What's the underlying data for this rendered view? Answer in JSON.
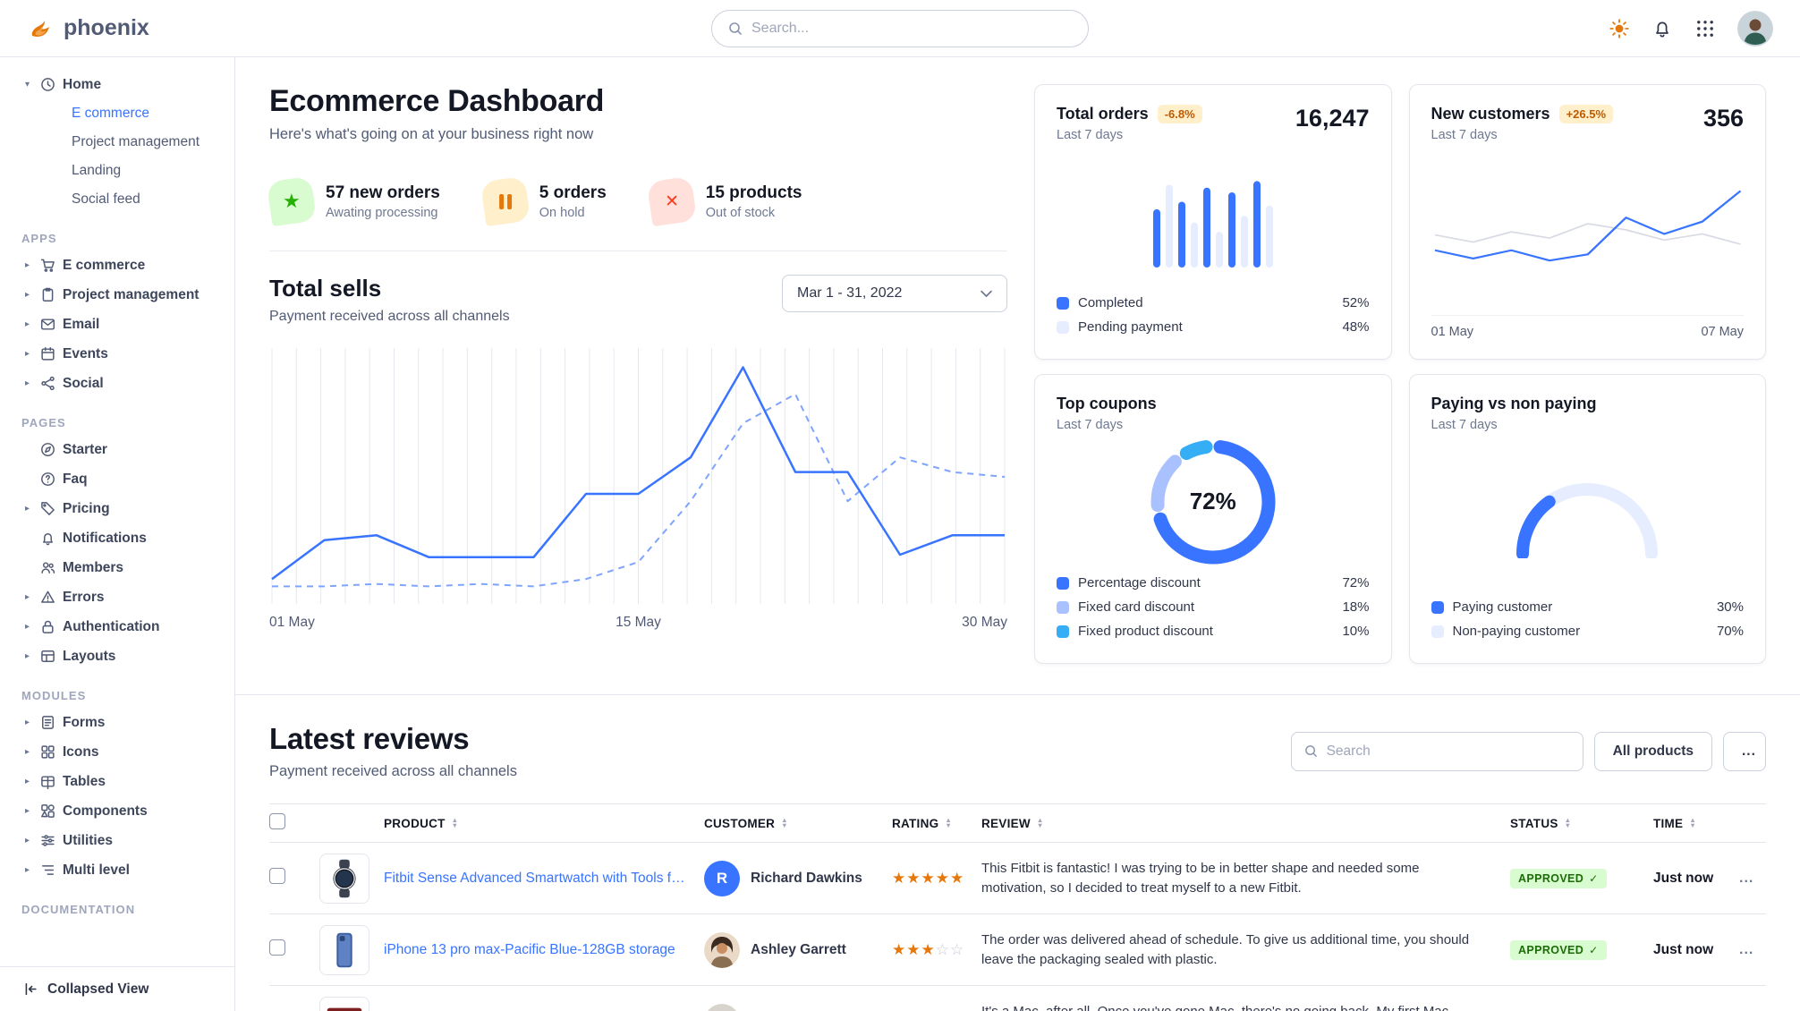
{
  "colors": {
    "primary": "#3874ff",
    "primary_light": "#e5edff",
    "primary_soft": "#7fa4ff",
    "periwinkle": "#a9c2ff",
    "info": "#35aef5",
    "warning": "#e5780b",
    "success": "#25b003",
    "danger": "#fa3b1d",
    "gridline": "#e5e8ef",
    "gray_line": "#d8dbe3"
  },
  "nav": {
    "brand": "phoenix",
    "search_placeholder": "Search..."
  },
  "sidebar": {
    "home": {
      "label": "Home",
      "children": [
        {
          "label": "E commerce"
        },
        {
          "label": "Project management"
        },
        {
          "label": "Landing"
        },
        {
          "label": "Social feed"
        }
      ]
    },
    "sections": [
      {
        "title": "APPS",
        "items": [
          {
            "label": "E commerce",
            "icon": "cart-icon"
          },
          {
            "label": "Project management",
            "icon": "clipboard-icon"
          },
          {
            "label": "Email",
            "icon": "mail-icon"
          },
          {
            "label": "Events",
            "icon": "calendar-icon"
          },
          {
            "label": "Social",
            "icon": "share-icon"
          }
        ]
      },
      {
        "title": "PAGES",
        "items": [
          {
            "label": "Starter",
            "icon": "compass-icon"
          },
          {
            "label": "Faq",
            "icon": "question-icon"
          },
          {
            "label": "Pricing",
            "icon": "tag-icon"
          },
          {
            "label": "Notifications",
            "icon": "bell-icon"
          },
          {
            "label": "Members",
            "icon": "users-icon"
          },
          {
            "label": "Errors",
            "icon": "warning-icon"
          },
          {
            "label": "Authentication",
            "icon": "lock-icon"
          },
          {
            "label": "Layouts",
            "icon": "layout-icon"
          }
        ]
      },
      {
        "title": "MODULES",
        "items": [
          {
            "label": "Forms",
            "icon": "form-icon"
          },
          {
            "label": "Icons",
            "icon": "grid-icon"
          },
          {
            "label": "Tables",
            "icon": "table-icon"
          },
          {
            "label": "Components",
            "icon": "components-icon"
          },
          {
            "label": "Utilities",
            "icon": "sliders-icon"
          },
          {
            "label": "Multi level",
            "icon": "list-icon"
          }
        ]
      },
      {
        "title": "DOCUMENTATION",
        "items": []
      }
    ],
    "collapse_label": "Collapsed View"
  },
  "header": {
    "title": "Ecommerce Dashboard",
    "subtitle": "Here's what's going on at your business right now"
  },
  "stats": [
    {
      "value": "57 new orders",
      "caption": "Awating processing",
      "icon": "star-icon"
    },
    {
      "value": "5 orders",
      "caption": "On hold",
      "icon": "pause-icon"
    },
    {
      "value": "15 products",
      "caption": "Out of stock",
      "icon": "x-icon"
    }
  ],
  "total_sells": {
    "title": "Total sells",
    "subtitle": "Payment received across all channels",
    "date_range": "Mar 1 - 31, 2022"
  },
  "charts": {
    "total_sells": {
      "type": "line",
      "x_labels": [
        "01 May",
        "15 May",
        "30 May"
      ],
      "y_range": [
        0,
        100
      ],
      "gridlines": 31,
      "series": [
        {
          "name": "current",
          "values": [
            8,
            24,
            26,
            17,
            17,
            17,
            43,
            43,
            58,
            95,
            52,
            52,
            18,
            26,
            26
          ]
        },
        {
          "name": "previous",
          "values": [
            5,
            5,
            6,
            5,
            6,
            5,
            8,
            15,
            40,
            72,
            84,
            40,
            58,
            52,
            50
          ]
        }
      ]
    },
    "total_orders": {
      "type": "bar",
      "values": [
        62,
        88,
        70,
        48,
        85,
        38,
        80,
        55,
        92,
        66
      ],
      "legend": [
        {
          "label": "Completed",
          "pct": "52%",
          "value": 52
        },
        {
          "label": "Pending payment",
          "pct": "48%",
          "value": 48
        }
      ]
    },
    "new_customers": {
      "type": "line",
      "x_labels": [
        "01 May",
        "07 May"
      ],
      "series": [
        {
          "name": "previous",
          "values": [
            45,
            38,
            48,
            42,
            56,
            50,
            40,
            46,
            36
          ]
        },
        {
          "name": "current",
          "values": [
            30,
            22,
            30,
            20,
            26,
            62,
            46,
            58,
            88
          ]
        }
      ]
    },
    "top_coupons": {
      "type": "donut",
      "center_label": "72%",
      "segments": [
        {
          "label": "Percentage discount",
          "pct": "72%",
          "value": 72,
          "swatch": "primary"
        },
        {
          "label": "Fixed card discount",
          "pct": "18%",
          "value": 18,
          "swatch": "periwinkle"
        },
        {
          "label": "Fixed product discount",
          "pct": "10%",
          "value": 10,
          "swatch": "info"
        }
      ]
    },
    "paying": {
      "type": "gauge",
      "segments": [
        {
          "label": "Paying customer",
          "pct": "30%",
          "value": 30,
          "swatch": "primary"
        },
        {
          "label": "Non-paying customer",
          "pct": "70%",
          "value": 70,
          "swatch": "primary_light"
        }
      ]
    }
  },
  "cards": {
    "total_orders": {
      "title": "Total orders",
      "badge": "-6.8%",
      "period": "Last 7 days",
      "value": "16,247"
    },
    "new_customers": {
      "title": "New customers",
      "badge": "+26.5%",
      "period": "Last 7 days",
      "value": "356"
    },
    "top_coupons": {
      "title": "Top coupons",
      "period": "Last 7 days"
    },
    "paying": {
      "title": "Paying vs non paying",
      "period": "Last 7 days"
    }
  },
  "reviews": {
    "title": "Latest reviews",
    "subtitle": "Payment received across all channels",
    "search_placeholder": "Search",
    "all_products_label": "All products",
    "more_label": "...",
    "columns": {
      "product": "PRODUCT",
      "customer": "CUSTOMER",
      "rating": "RATING",
      "review": "REVIEW",
      "status": "STATUS",
      "time": "TIME"
    },
    "rows": [
      {
        "product": "Fitbit Sense Advanced Smartwatch with Tools fo...",
        "customer": "Richard Dawkins",
        "customer_initial": "R",
        "rating": 5,
        "review": "This Fitbit is fantastic! I was trying to be in better shape and needed some motivation, so I decided to treat myself to a new Fitbit.",
        "status": "APPROVED",
        "time": "Just now"
      },
      {
        "product": "iPhone 13 pro max-Pacific Blue-128GB storage",
        "customer": "Ashley Garrett",
        "rating": 3,
        "review": "The order was delivered ahead of schedule. To give us additional time, you should leave the packaging sealed with plastic.",
        "status": "APPROVED",
        "time": "Just now"
      },
      {
        "review": "It's a Mac, after all. Once you've gone Mac, there's no going back. My first Mac lasted..."
      }
    ]
  }
}
